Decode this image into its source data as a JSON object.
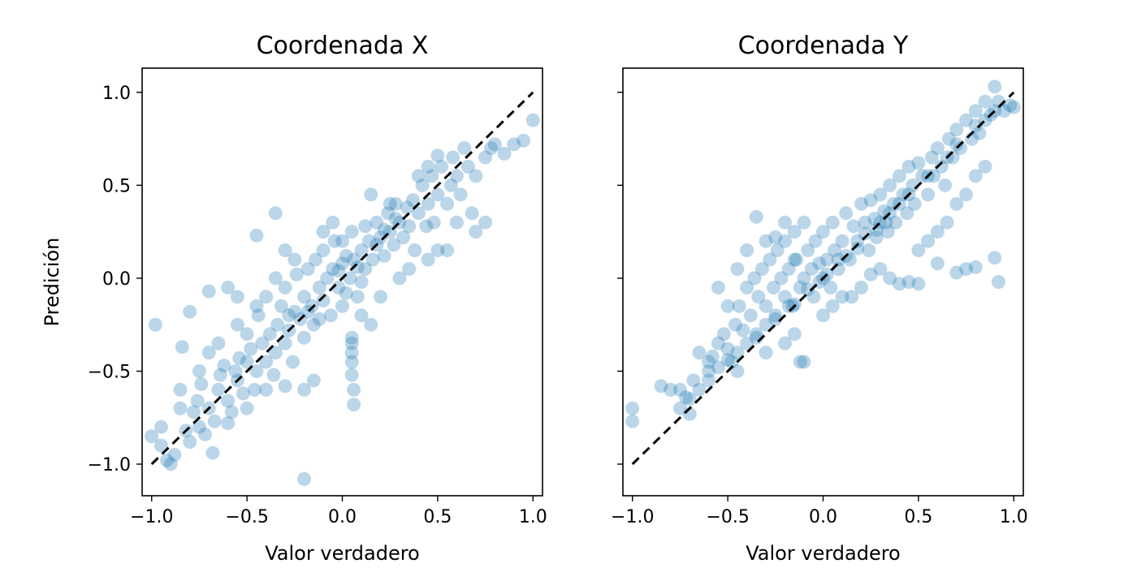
{
  "figure": {
    "ylabel": "Predición"
  },
  "colors": {
    "points": "#1f77b4",
    "reference_line": "#000000"
  },
  "chart_data": [
    {
      "type": "scatter",
      "title": "Coordenada X",
      "xlabel": "Valor verdadero",
      "ylabel": "Predición",
      "xlim": [
        -1.05,
        1.05
      ],
      "ylim": [
        -1.17,
        1.13
      ],
      "xticks": [
        -1.0,
        -0.5,
        0.0,
        0.5,
        1.0
      ],
      "xtick_labels": [
        "−1.0",
        "−0.5",
        "0.0",
        "0.5",
        "1.0"
      ],
      "yticks": [
        -1.0,
        -0.5,
        0.0,
        0.5,
        1.0
      ],
      "ytick_labels": [
        "−1.0",
        "−0.5",
        "0.0",
        "0.5",
        "1.0"
      ],
      "reference_line": [
        [
          -1.0,
          -1.0
        ],
        [
          1.0,
          1.0
        ]
      ],
      "grid": false,
      "points": [
        [
          -1.0,
          -0.85
        ],
        [
          -0.98,
          -0.25
        ],
        [
          -0.95,
          -0.9
        ],
        [
          -0.92,
          -0.98
        ],
        [
          -0.9,
          -1.0
        ],
        [
          -0.88,
          -0.95
        ],
        [
          -0.85,
          -0.6
        ],
        [
          -0.84,
          -0.37
        ],
        [
          -0.82,
          -0.82
        ],
        [
          -0.8,
          -0.18
        ],
        [
          -0.8,
          -0.88
        ],
        [
          -0.78,
          -0.72
        ],
        [
          -0.76,
          -0.66
        ],
        [
          -0.75,
          -0.8
        ],
        [
          -0.74,
          -0.57
        ],
        [
          -0.72,
          -0.84
        ],
        [
          -0.7,
          -0.7
        ],
        [
          -0.7,
          -0.4
        ],
        [
          -0.68,
          -0.94
        ],
        [
          -0.67,
          -0.77
        ],
        [
          -0.65,
          -0.6
        ],
        [
          -0.64,
          -0.52
        ],
        [
          -0.62,
          -0.47
        ],
        [
          -0.6,
          -0.66
        ],
        [
          -0.58,
          -0.72
        ],
        [
          -0.6,
          -0.78
        ],
        [
          -0.56,
          -0.5
        ],
        [
          -0.55,
          -0.55
        ],
        [
          -0.54,
          -0.43
        ],
        [
          -0.52,
          -0.62
        ],
        [
          -0.5,
          -0.45
        ],
        [
          -0.5,
          -0.3
        ],
        [
          -0.48,
          -0.38
        ],
        [
          -0.46,
          -0.6
        ],
        [
          -0.45,
          -0.5
        ],
        [
          -0.44,
          -0.2
        ],
        [
          -0.42,
          -0.35
        ],
        [
          -0.4,
          -0.45
        ],
        [
          -0.4,
          -0.1
        ],
        [
          -0.38,
          -0.3
        ],
        [
          -0.36,
          -0.52
        ],
        [
          -0.35,
          -0.4
        ],
        [
          -0.34,
          -0.25
        ],
        [
          -0.32,
          -0.15
        ],
        [
          -0.3,
          -0.35
        ],
        [
          -0.3,
          -0.05
        ],
        [
          -0.28,
          -0.28
        ],
        [
          -0.26,
          -0.45
        ],
        [
          -0.25,
          -0.18
        ],
        [
          -0.24,
          0.02
        ],
        [
          -0.22,
          -0.22
        ],
        [
          -0.2,
          -0.1
        ],
        [
          -0.2,
          -0.32
        ],
        [
          -0.18,
          0.05
        ],
        [
          -0.16,
          -0.15
        ],
        [
          -0.15,
          -0.25
        ],
        [
          -0.14,
          0.1
        ],
        [
          -0.12,
          -0.05
        ],
        [
          -0.1,
          -0.12
        ],
        [
          -0.1,
          0.15
        ],
        [
          -0.08,
          0.0
        ],
        [
          -0.06,
          -0.2
        ],
        [
          -0.05,
          0.05
        ],
        [
          -0.04,
          0.2
        ],
        [
          -0.02,
          -0.05
        ],
        [
          0.0,
          0.08
        ],
        [
          0.0,
          -0.15
        ],
        [
          0.02,
          0.12
        ],
        [
          0.04,
          0.0
        ],
        [
          0.05,
          0.25
        ],
        [
          0.06,
          0.1
        ],
        [
          0.08,
          -0.1
        ],
        [
          0.1,
          0.15
        ],
        [
          0.12,
          0.05
        ],
        [
          0.12,
          0.28
        ],
        [
          0.14,
          0.2
        ],
        [
          0.16,
          0.1
        ],
        [
          0.18,
          0.3
        ],
        [
          0.2,
          0.22
        ],
        [
          0.22,
          0.12
        ],
        [
          0.24,
          0.35
        ],
        [
          0.25,
          0.25
        ],
        [
          0.27,
          0.18
        ],
        [
          0.28,
          0.4
        ],
        [
          0.3,
          0.3
        ],
        [
          0.32,
          0.22
        ],
        [
          0.34,
          0.38
        ],
        [
          0.35,
          0.28
        ],
        [
          0.37,
          0.42
        ],
        [
          0.38,
          0.15
        ],
        [
          0.4,
          0.35
        ],
        [
          0.42,
          0.5
        ],
        [
          0.44,
          0.28
        ],
        [
          0.45,
          0.4
        ],
        [
          0.47,
          0.55
        ],
        [
          0.48,
          0.3
        ],
        [
          0.5,
          0.45
        ],
        [
          0.52,
          0.6
        ],
        [
          0.55,
          0.4
        ],
        [
          0.57,
          0.5
        ],
        [
          0.58,
          0.65
        ],
        [
          0.6,
          0.55
        ],
        [
          0.62,
          0.45
        ],
        [
          0.64,
          0.7
        ],
        [
          0.66,
          0.6
        ],
        [
          0.68,
          0.35
        ],
        [
          0.7,
          0.55
        ],
        [
          0.75,
          0.65
        ],
        [
          0.78,
          0.7
        ],
        [
          0.8,
          0.72
        ],
        [
          0.85,
          0.67
        ],
        [
          0.9,
          0.72
        ],
        [
          0.95,
          0.74
        ],
        [
          1.0,
          0.85
        ],
        [
          0.7,
          0.25
        ],
        [
          0.75,
          0.3
        ],
        [
          0.6,
          0.3
        ],
        [
          0.55,
          0.15
        ],
        [
          0.05,
          -0.35
        ],
        [
          0.05,
          -0.4
        ],
        [
          0.05,
          -0.45
        ],
        [
          0.06,
          -0.6
        ],
        [
          0.05,
          -0.52
        ],
        [
          0.06,
          -0.68
        ],
        [
          0.05,
          -0.32
        ],
        [
          -0.2,
          -1.08
        ],
        [
          -0.35,
          0.35
        ],
        [
          -0.45,
          0.23
        ],
        [
          -0.3,
          0.15
        ],
        [
          -0.6,
          -0.05
        ],
        [
          -0.7,
          -0.07
        ],
        [
          -0.55,
          -0.1
        ],
        [
          -0.4,
          -0.6
        ],
        [
          -0.5,
          -0.7
        ],
        [
          -0.2,
          -0.6
        ],
        [
          -0.15,
          -0.55
        ],
        [
          -0.3,
          -0.58
        ],
        [
          0.0,
          0.2
        ],
        [
          -0.05,
          0.3
        ],
        [
          -0.1,
          0.25
        ],
        [
          0.1,
          -0.2
        ],
        [
          0.15,
          -0.25
        ],
        [
          0.2,
          -0.1
        ],
        [
          0.3,
          0.0
        ],
        [
          0.35,
          0.05
        ],
        [
          0.45,
          0.1
        ],
        [
          0.5,
          0.15
        ],
        [
          0.25,
          0.4
        ],
        [
          0.15,
          0.45
        ],
        [
          0.4,
          0.55
        ],
        [
          0.45,
          0.6
        ],
        [
          0.5,
          0.66
        ],
        [
          -0.25,
          0.1
        ],
        [
          -0.35,
          0.0
        ],
        [
          -0.45,
          -0.15
        ],
        [
          -0.55,
          -0.25
        ],
        [
          -0.65,
          -0.35
        ],
        [
          -0.75,
          -0.5
        ],
        [
          -0.85,
          -0.7
        ],
        [
          -0.95,
          -0.8
        ],
        [
          0.02,
          -0.08
        ],
        [
          -0.02,
          0.04
        ],
        [
          0.08,
          0.06
        ],
        [
          0.1,
          -0.02
        ],
        [
          -0.12,
          -0.22
        ],
        [
          -0.18,
          -0.18
        ],
        [
          0.18,
          0.18
        ],
        [
          0.22,
          0.26
        ],
        [
          0.28,
          0.32
        ],
        [
          -0.28,
          -0.2
        ]
      ]
    },
    {
      "type": "scatter",
      "title": "Coordenada Y",
      "xlabel": "Valor verdadero",
      "ylabel": "",
      "xlim": [
        -1.05,
        1.05
      ],
      "ylim": [
        -1.17,
        1.13
      ],
      "xticks": [
        -1.0,
        -0.5,
        0.0,
        0.5,
        1.0
      ],
      "xtick_labels": [
        "−1.0",
        "−0.5",
        "0.0",
        "0.5",
        "1.0"
      ],
      "yticks": [
        -1.0,
        -0.5,
        0.0,
        0.5,
        1.0
      ],
      "ytick_labels": [],
      "reference_line": [
        [
          -1.0,
          -1.0
        ],
        [
          1.0,
          1.0
        ]
      ],
      "grid": false,
      "points": [
        [
          -1.0,
          -0.7
        ],
        [
          -1.0,
          -0.77
        ],
        [
          -0.85,
          -0.58
        ],
        [
          -0.8,
          -0.6
        ],
        [
          -0.75,
          -0.6
        ],
        [
          -0.72,
          -0.64
        ],
        [
          -0.7,
          -0.73
        ],
        [
          -0.68,
          -0.55
        ],
        [
          -0.65,
          -0.4
        ],
        [
          -0.6,
          -0.5
        ],
        [
          -0.6,
          -0.45
        ],
        [
          -0.58,
          -0.42
        ],
        [
          -0.55,
          -0.35
        ],
        [
          -0.52,
          -0.3
        ],
        [
          -0.5,
          -0.38
        ],
        [
          -0.48,
          -0.45
        ],
        [
          -0.46,
          -0.25
        ],
        [
          -0.45,
          -0.5
        ],
        [
          -0.44,
          -0.15
        ],
        [
          -0.42,
          -0.28
        ],
        [
          -0.4,
          -0.05
        ],
        [
          -0.4,
          -0.35
        ],
        [
          -0.38,
          -0.2
        ],
        [
          -0.36,
          0.0
        ],
        [
          -0.35,
          -0.3
        ],
        [
          -0.34,
          -0.1
        ],
        [
          -0.32,
          0.05
        ],
        [
          -0.3,
          -0.25
        ],
        [
          -0.3,
          -0.15
        ],
        [
          -0.28,
          0.1
        ],
        [
          -0.26,
          -0.05
        ],
        [
          -0.25,
          -0.2
        ],
        [
          -0.24,
          0.15
        ],
        [
          -0.22,
          0.0
        ],
        [
          -0.2,
          -0.1
        ],
        [
          -0.2,
          0.2
        ],
        [
          -0.18,
          0.05
        ],
        [
          -0.16,
          -0.15
        ],
        [
          -0.15,
          0.25
        ],
        [
          -0.14,
          0.1
        ],
        [
          -0.12,
          -0.05
        ],
        [
          -0.1,
          0.3
        ],
        [
          -0.1,
          0.0
        ],
        [
          -0.08,
          0.15
        ],
        [
          -0.06,
          0.05
        ],
        [
          -0.05,
          -0.1
        ],
        [
          -0.04,
          0.2
        ],
        [
          -0.02,
          0.08
        ],
        [
          0.0,
          0.0
        ],
        [
          0.0,
          0.25
        ],
        [
          0.02,
          0.1
        ],
        [
          0.04,
          -0.05
        ],
        [
          0.05,
          0.3
        ],
        [
          0.06,
          0.15
        ],
        [
          0.08,
          0.05
        ],
        [
          0.1,
          0.2
        ],
        [
          0.12,
          0.35
        ],
        [
          0.14,
          0.1
        ],
        [
          0.16,
          0.28
        ],
        [
          0.18,
          0.2
        ],
        [
          0.2,
          0.4
        ],
        [
          0.22,
          0.3
        ],
        [
          0.24,
          0.15
        ],
        [
          0.25,
          0.42
        ],
        [
          0.27,
          0.32
        ],
        [
          0.28,
          0.22
        ],
        [
          0.3,
          0.45
        ],
        [
          0.32,
          0.36
        ],
        [
          0.34,
          0.25
        ],
        [
          0.35,
          0.5
        ],
        [
          0.37,
          0.4
        ],
        [
          0.38,
          0.3
        ],
        [
          0.4,
          0.55
        ],
        [
          0.42,
          0.45
        ],
        [
          0.44,
          0.35
        ],
        [
          0.45,
          0.6
        ],
        [
          0.47,
          0.5
        ],
        [
          0.48,
          0.4
        ],
        [
          0.5,
          0.62
        ],
        [
          0.52,
          0.55
        ],
        [
          0.55,
          0.45
        ],
        [
          0.57,
          0.65
        ],
        [
          0.58,
          0.55
        ],
        [
          0.6,
          0.7
        ],
        [
          0.62,
          0.6
        ],
        [
          0.64,
          0.5
        ],
        [
          0.66,
          0.75
        ],
        [
          0.68,
          0.65
        ],
        [
          0.7,
          0.8
        ],
        [
          0.72,
          0.7
        ],
        [
          0.75,
          0.85
        ],
        [
          0.78,
          0.75
        ],
        [
          0.8,
          0.9
        ],
        [
          0.82,
          0.78
        ],
        [
          0.85,
          0.95
        ],
        [
          0.88,
          0.88
        ],
        [
          0.9,
          1.03
        ],
        [
          0.92,
          0.95
        ],
        [
          0.95,
          0.9
        ],
        [
          0.98,
          0.93
        ],
        [
          1.0,
          0.92
        ],
        [
          0.9,
          0.11
        ],
        [
          0.92,
          -0.02
        ],
        [
          0.8,
          0.06
        ],
        [
          0.75,
          0.05
        ],
        [
          0.7,
          0.03
        ],
        [
          0.6,
          0.08
        ],
        [
          0.5,
          -0.03
        ],
        [
          0.45,
          -0.02
        ],
        [
          0.4,
          -0.03
        ],
        [
          0.35,
          0.0
        ],
        [
          0.3,
          0.05
        ],
        [
          0.25,
          0.02
        ],
        [
          0.2,
          -0.05
        ],
        [
          0.15,
          -0.1
        ],
        [
          -0.1,
          -0.45
        ],
        [
          -0.12,
          -0.45
        ],
        [
          -0.35,
          0.33
        ],
        [
          -0.2,
          0.3
        ],
        [
          -0.25,
          0.22
        ],
        [
          -0.15,
          0.1
        ],
        [
          -0.3,
          0.2
        ],
        [
          -0.5,
          -0.15
        ],
        [
          -0.55,
          -0.05
        ],
        [
          -0.45,
          0.05
        ],
        [
          -0.4,
          0.15
        ],
        [
          -0.3,
          -0.4
        ],
        [
          -0.2,
          -0.35
        ],
        [
          -0.15,
          -0.3
        ],
        [
          0.0,
          -0.2
        ],
        [
          0.05,
          -0.15
        ],
        [
          0.1,
          -0.1
        ],
        [
          0.3,
          0.3
        ],
        [
          0.35,
          0.35
        ],
        [
          0.4,
          0.4
        ],
        [
          0.45,
          0.45
        ],
        [
          0.55,
          0.55
        ],
        [
          0.65,
          0.65
        ],
        [
          0.7,
          0.72
        ],
        [
          0.8,
          0.82
        ],
        [
          0.85,
          0.85
        ],
        [
          0.9,
          0.9
        ],
        [
          0.6,
          0.25
        ],
        [
          0.65,
          0.3
        ],
        [
          0.55,
          0.2
        ],
        [
          0.5,
          0.15
        ],
        [
          0.7,
          0.4
        ],
        [
          0.75,
          0.45
        ],
        [
          0.8,
          0.55
        ],
        [
          0.85,
          0.6
        ],
        [
          -0.6,
          -0.55
        ],
        [
          -0.65,
          -0.6
        ],
        [
          -0.7,
          -0.65
        ],
        [
          -0.75,
          -0.7
        ],
        [
          -0.55,
          -0.48
        ],
        [
          -0.5,
          -0.44
        ],
        [
          -0.45,
          -0.4
        ],
        [
          -0.35,
          -0.32
        ],
        [
          -0.25,
          -0.22
        ],
        [
          -0.15,
          -0.14
        ],
        [
          0.02,
          0.02
        ],
        [
          -0.02,
          -0.02
        ],
        [
          0.08,
          0.1
        ],
        [
          0.12,
          0.12
        ],
        [
          0.18,
          0.16
        ],
        [
          -0.08,
          -0.06
        ],
        [
          -0.18,
          -0.15
        ],
        [
          0.22,
          0.24
        ],
        [
          0.28,
          0.26
        ],
        [
          0.33,
          0.3
        ]
      ]
    }
  ]
}
